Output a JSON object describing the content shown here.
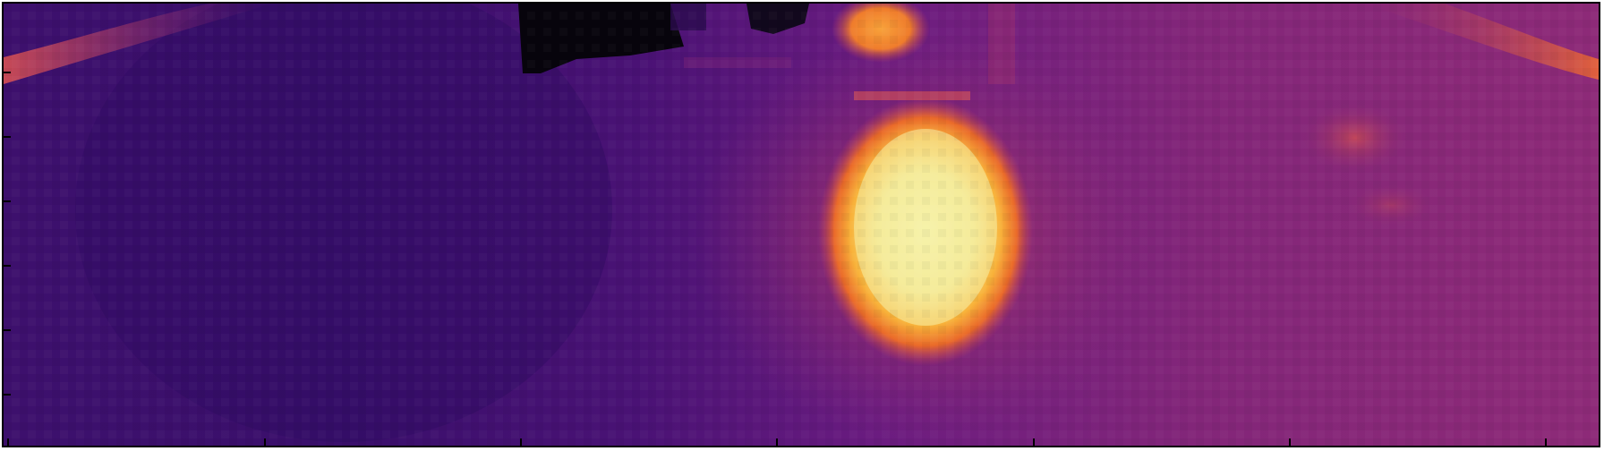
{
  "image": {
    "colormap": "inferno",
    "palette": {
      "black": "#050308",
      "deep_purple": "#3b0f6e",
      "purple": "#58157f",
      "magenta": "#8a2a74",
      "pink_red": "#c0405c",
      "orange": "#f0802a",
      "amber": "#f8b23a",
      "pale_yellow": "#f5f0a4"
    }
  }
}
